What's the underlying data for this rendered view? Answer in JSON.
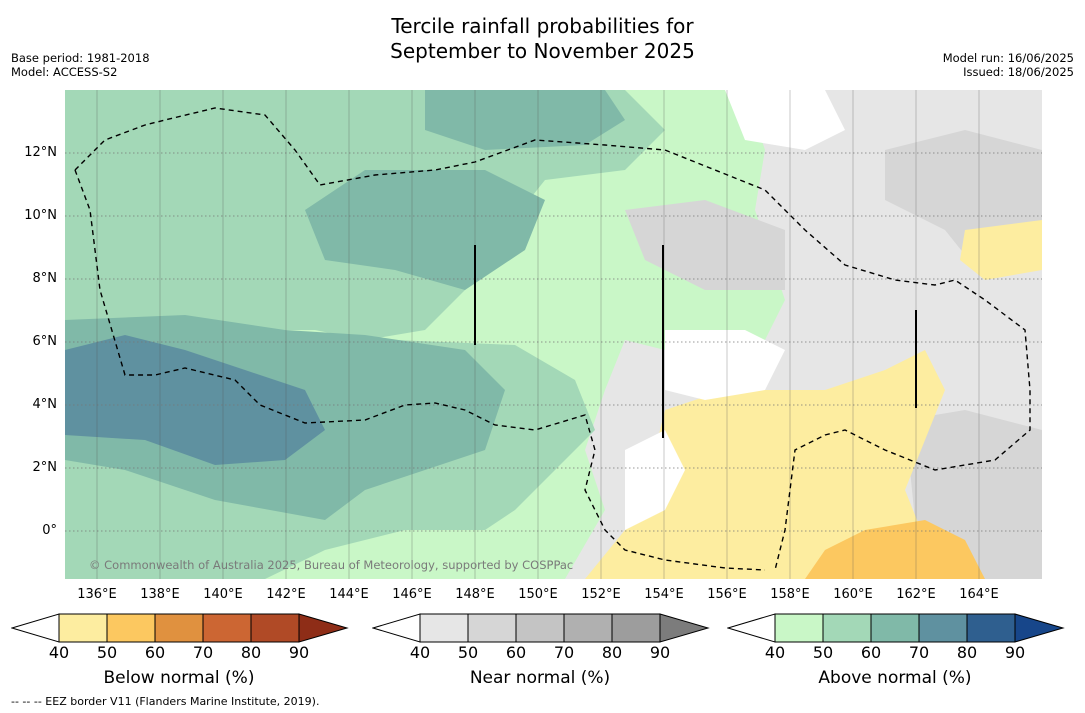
{
  "title_line1": "Tercile rainfall probabilities for",
  "title_line2": "September to November 2025",
  "base_period": "Base period: 1981-2018",
  "model": "Model: ACCESS-S2",
  "model_run": "Model run: 16/06/2025",
  "issued": "Issued: 18/06/2025",
  "copyright": "© Commonwealth of Australia 2025, Bureau of Meteorology, supported by COSPPac",
  "footnote": "--  --  -- EEZ border V11 (Flanders Marine Institute, 2019).",
  "lat_labels": [
    "12°N",
    "10°N",
    "8°N",
    "6°N",
    "4°N",
    "2°N",
    "0°"
  ],
  "lon_labels": [
    "136°E",
    "138°E",
    "140°E",
    "142°E",
    "144°E",
    "146°E",
    "148°E",
    "150°E",
    "152°E",
    "154°E",
    "156°E",
    "158°E",
    "160°E",
    "162°E",
    "164°E"
  ],
  "colorbars": [
    {
      "title": "Below normal (%)",
      "ticks": [
        "40",
        "50",
        "60",
        "70",
        "80",
        "90"
      ],
      "colors": [
        "#ffffff",
        "#fdeda0",
        "#fcc860",
        "#e0913f",
        "#cc6633",
        "#b04a26",
        "#8e2d17"
      ]
    },
    {
      "title": "Near normal (%)",
      "ticks": [
        "40",
        "50",
        "60",
        "70",
        "80",
        "90"
      ],
      "colors": [
        "#ffffff",
        "#e6e6e6",
        "#d6d6d6",
        "#c4c4c4",
        "#b0b0b0",
        "#9d9d9d",
        "#7c7c7c"
      ]
    },
    {
      "title": "Above normal (%)",
      "ticks": [
        "40",
        "50",
        "60",
        "70",
        "80",
        "90"
      ],
      "colors": [
        "#ffffff",
        "#c9f7c7",
        "#a3d8b7",
        "#80b9a8",
        "#5f91a0",
        "#2f5f8f",
        "#17468a"
      ]
    }
  ]
}
